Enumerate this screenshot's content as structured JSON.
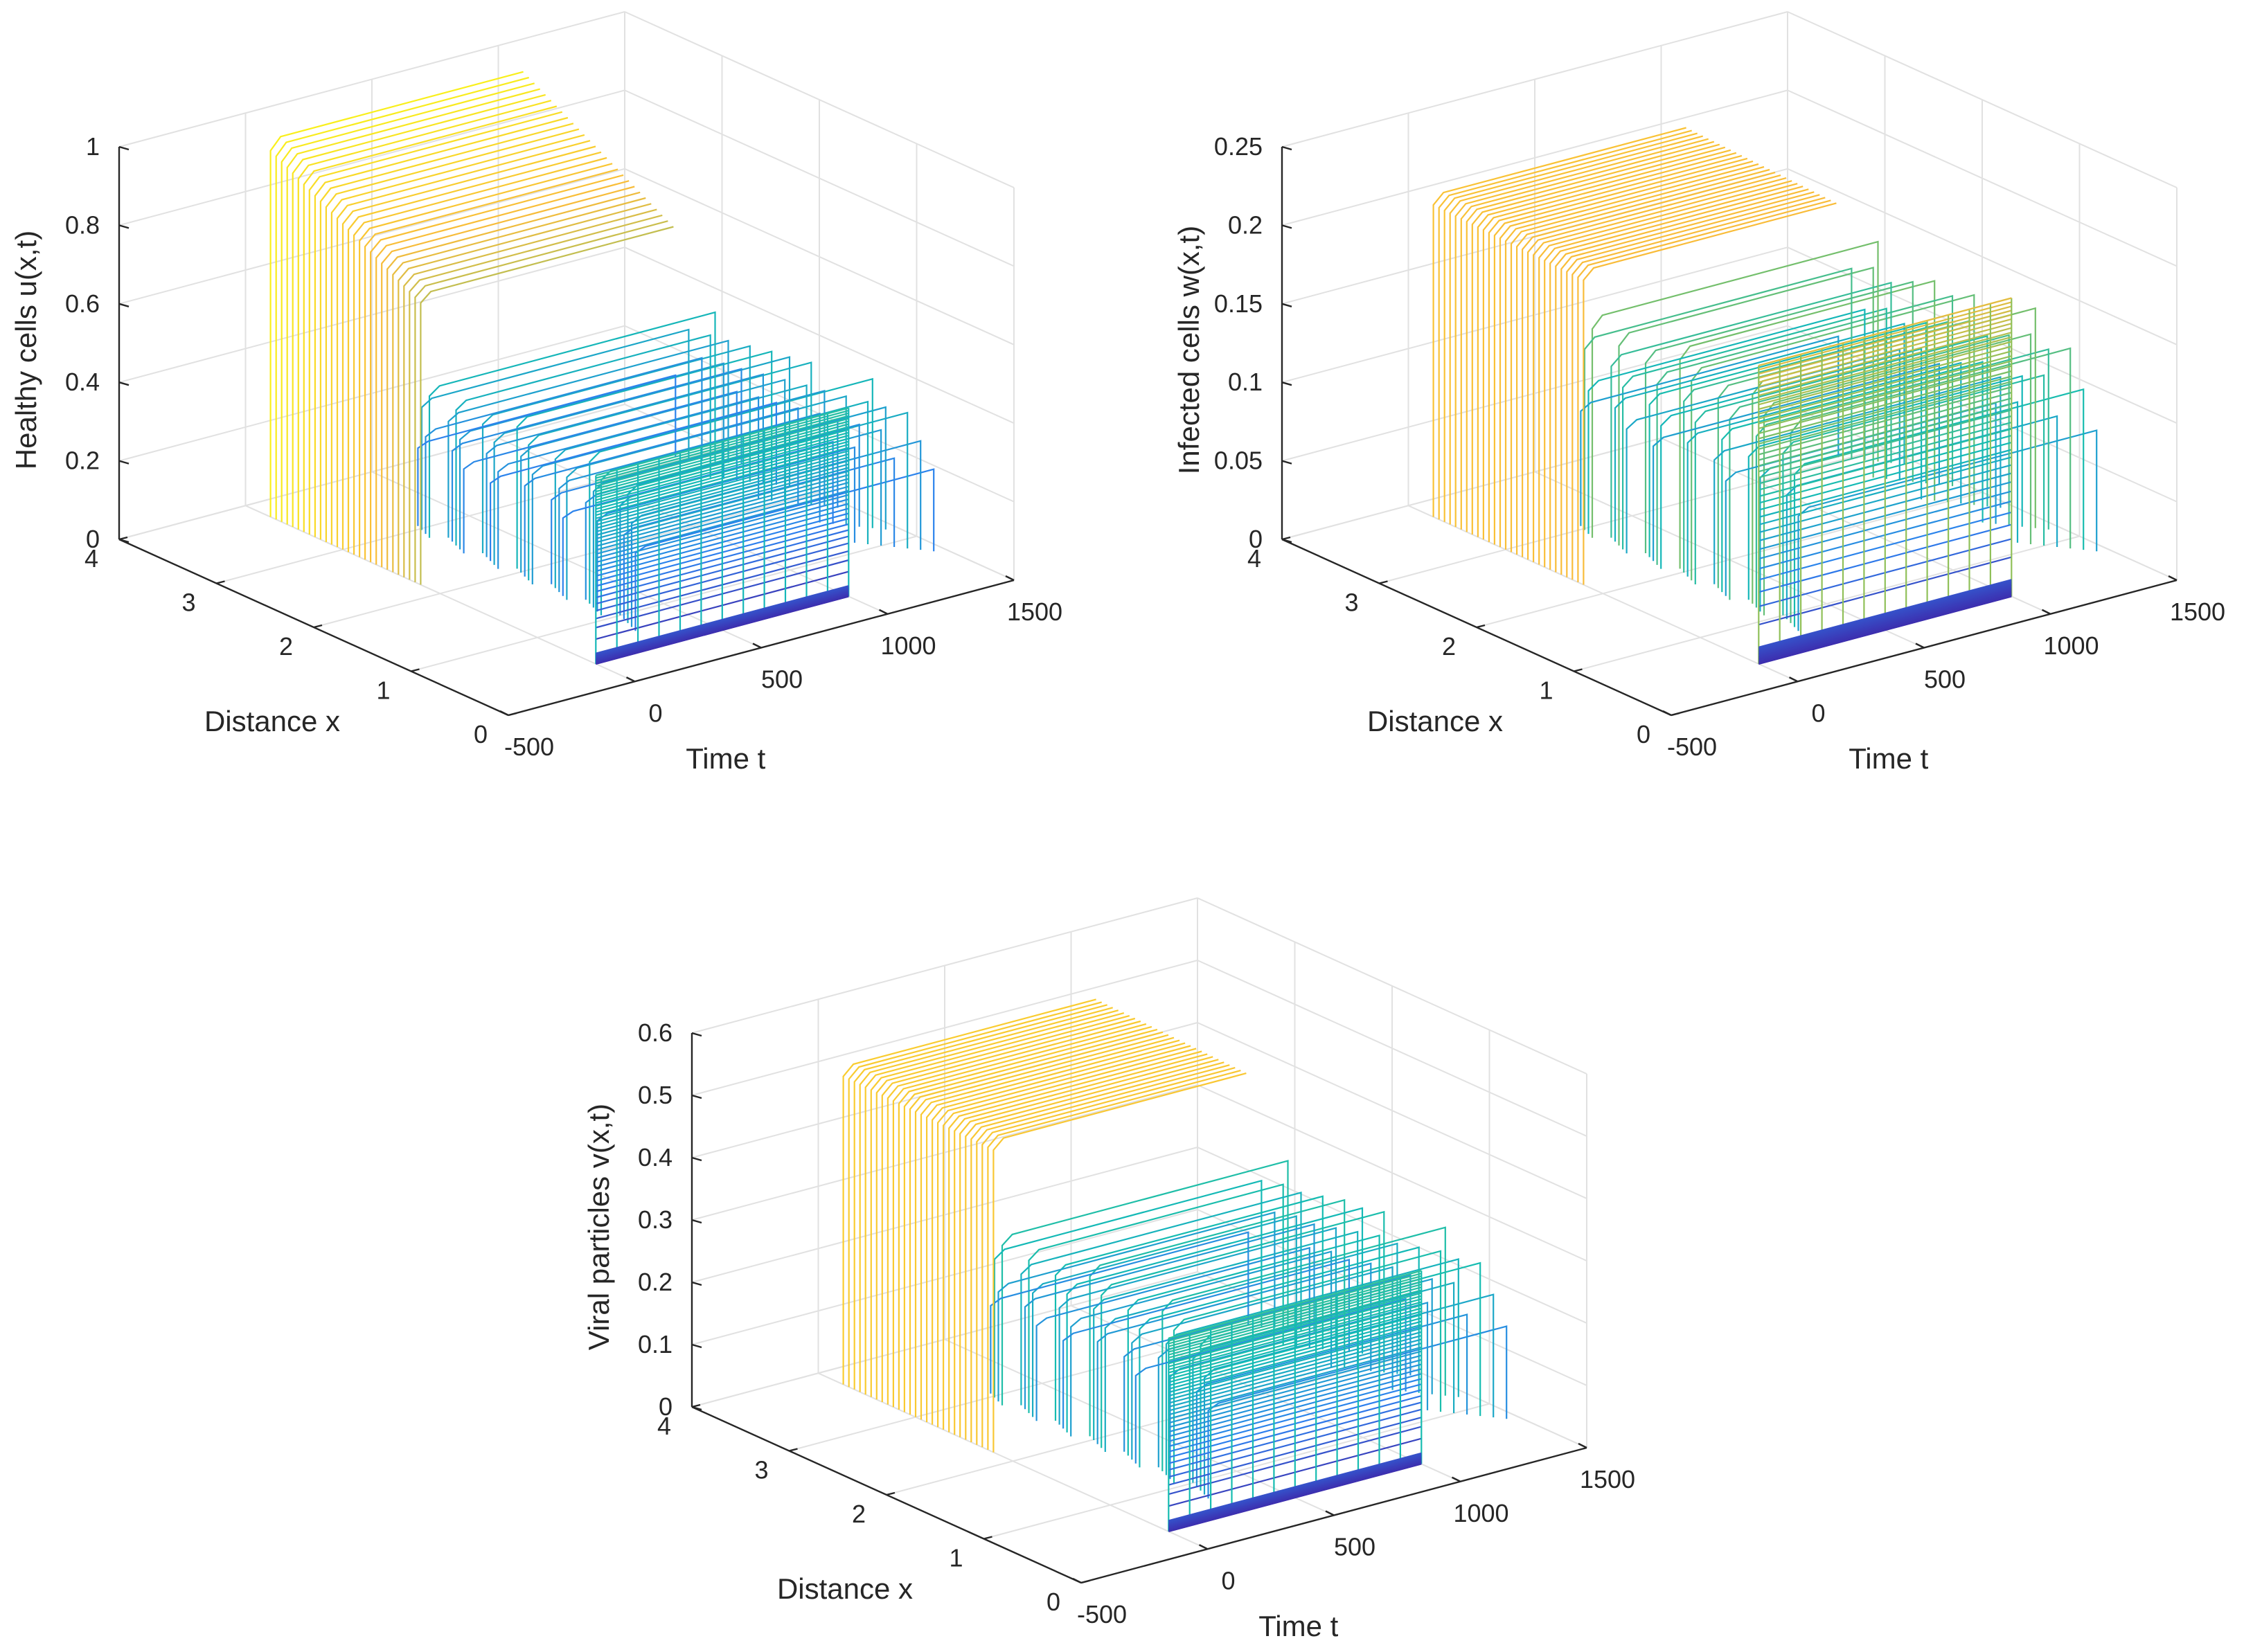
{
  "chart_data": [
    {
      "type": "mesh3d",
      "name": "healthy",
      "zlabel": "Healthy cells u(x,t)",
      "xlabel": "Distance x",
      "tlabel": "Time t",
      "x_ticks": [
        "0",
        "1",
        "2",
        "3",
        "4"
      ],
      "t_ticks": [
        "-500",
        "0",
        "500",
        "1000",
        "1500"
      ],
      "z_ticks": [
        "0",
        "0.2",
        "0.4",
        "0.6",
        "0.8",
        "1"
      ],
      "x_range": [
        0,
        4
      ],
      "t_range": [
        -500,
        1500
      ],
      "z_range": [
        0,
        1
      ],
      "front_level": 0.97,
      "front_floor": 0.48,
      "mid_level": 0.74,
      "back_level": 0.38,
      "fg_t_range": [
        0,
        1000
      ],
      "bg_t_range": [
        0,
        1500
      ],
      "colors": [
        "#3e26a8",
        "#2d80ef",
        "#13bcb3",
        "#44c387",
        "#f9bc39",
        "#f9fb14"
      ]
    },
    {
      "type": "mesh3d",
      "name": "infected",
      "zlabel": "Infected cells  w(x,t)",
      "xlabel": "Distance x",
      "tlabel": "Time t",
      "x_ticks": [
        "0",
        "1",
        "2",
        "3",
        "4"
      ],
      "t_ticks": [
        "-500",
        "0",
        "500",
        "1000",
        "1500"
      ],
      "z_ticks": [
        "0",
        "0.05",
        "0.1",
        "0.15",
        "0.2",
        "0.25"
      ],
      "x_range": [
        0,
        4
      ],
      "t_range": [
        -500,
        1500
      ],
      "z_range": [
        0,
        0.25
      ],
      "front_level": 0.205,
      "front_floor": 0.19,
      "mid_level": 0.2,
      "back_level": 0.14,
      "fg_t_range": [
        0,
        1000
      ],
      "bg_t_range": [
        0,
        1500
      ],
      "colors": [
        "#3e26a8",
        "#2d80ef",
        "#13bcb3",
        "#8cc05a",
        "#f9bc39",
        "#f9fb14"
      ]
    },
    {
      "type": "mesh3d",
      "name": "viral",
      "zlabel": "Viral particles v(x,t)",
      "xlabel": "Distance x",
      "tlabel": "Time t",
      "x_ticks": [
        "0",
        "1",
        "2",
        "3",
        "4"
      ],
      "t_ticks": [
        "-500",
        "0",
        "500",
        "1000",
        "1500"
      ],
      "z_ticks": [
        "0",
        "0.1",
        "0.2",
        "0.3",
        "0.4",
        "0.5",
        "0.6"
      ],
      "x_range": [
        0,
        4
      ],
      "t_range": [
        -500,
        1500
      ],
      "z_range": [
        0,
        0.6
      ],
      "front_level": 0.51,
      "front_floor": 0.31,
      "mid_level": 0.5,
      "back_level": 0.27,
      "fg_t_range": [
        0,
        1000
      ],
      "bg_t_range": [
        0,
        1500
      ],
      "colors": [
        "#3e26a8",
        "#2d80ef",
        "#13bcb3",
        "#44c387",
        "#f9bc39",
        "#f9fb14"
      ]
    }
  ]
}
